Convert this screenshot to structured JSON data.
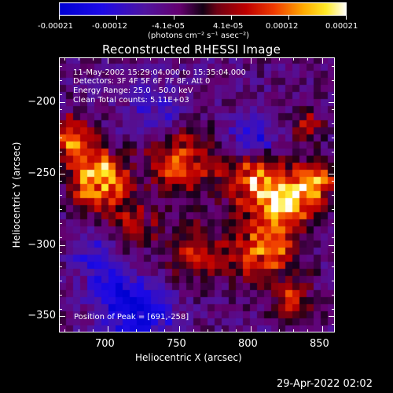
{
  "colorbar": {
    "labels": [
      "-0.00021",
      "-0.00012",
      "-4.1e-05",
      "4.1e-05",
      "0.00012",
      "0.00021"
    ],
    "units": "(photons cm⁻² s⁻¹ asec⁻²)"
  },
  "title": "Reconstructed RHESSI Image",
  "info": {
    "time_range": "11-May-2002 15:29:04.000 to 15:35:04.000",
    "detectors": "Detectors: 3F 4F 5F 6F 7F 8F, Att 0",
    "energy": "Energy Range: 25.0 - 50.0 keV",
    "clean": "Clean      Total counts: 5.11E+03"
  },
  "peak": "Position of Peak = [691,-258]",
  "axes": {
    "xlabel": "Heliocentric X (arcsec)",
    "ylabel": "Heliocentric Y (arcsec)",
    "xticks": [
      "700",
      "750",
      "800",
      "850"
    ],
    "yticks": [
      "−200",
      "−250",
      "−300",
      "−350"
    ]
  },
  "timestamp": "29-Apr-2022 02:02"
}
